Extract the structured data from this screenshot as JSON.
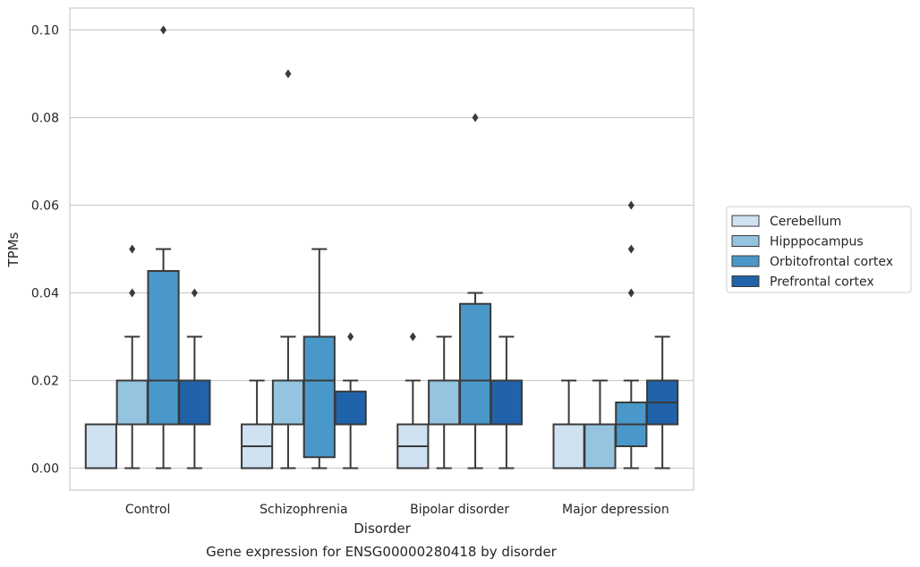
{
  "chart_data": {
    "type": "box",
    "title": "Gene expression for ENSG00000280418 by disorder",
    "xlabel": "Disorder",
    "ylabel": "TPMs",
    "ylim": [
      -0.005,
      0.105
    ],
    "y_ticks": [
      0.0,
      0.02,
      0.04,
      0.06,
      0.08,
      0.1
    ],
    "y_tick_labels": [
      "0.00",
      "0.02",
      "0.04",
      "0.06",
      "0.08",
      "0.10"
    ],
    "grid": "horizontal",
    "legend_position": "right",
    "categories": [
      "Control",
      "Schizophrenia",
      "Bipolar disorder",
      "Major depression"
    ],
    "series": [
      {
        "name": "Cerebellum",
        "color": "#d0e1f2",
        "boxes": [
          {
            "whislo": 0.0,
            "q1": 0.0,
            "med": 0.0,
            "q3": 0.01,
            "whishi": 0.01,
            "fliers": []
          },
          {
            "whislo": 0.0,
            "q1": 0.0,
            "med": 0.005,
            "q3": 0.01,
            "whishi": 0.02,
            "fliers": []
          },
          {
            "whislo": 0.0,
            "q1": 0.0,
            "med": 0.005,
            "q3": 0.01,
            "whishi": 0.02,
            "fliers": [
              0.03
            ]
          },
          {
            "whislo": 0.0,
            "q1": 0.0,
            "med": 0.0,
            "q3": 0.01,
            "whishi": 0.02,
            "fliers": []
          }
        ]
      },
      {
        "name": "Hipppocampus",
        "color": "#94c4df",
        "boxes": [
          {
            "whislo": 0.0,
            "q1": 0.01,
            "med": 0.01,
            "q3": 0.02,
            "whishi": 0.03,
            "fliers": [
              0.04,
              0.05
            ]
          },
          {
            "whislo": 0.0,
            "q1": 0.01,
            "med": 0.01,
            "q3": 0.02,
            "whishi": 0.03,
            "fliers": [
              0.09
            ]
          },
          {
            "whislo": 0.0,
            "q1": 0.01,
            "med": 0.01,
            "q3": 0.02,
            "whishi": 0.03,
            "fliers": []
          },
          {
            "whislo": 0.0,
            "q1": 0.0,
            "med": 0.0,
            "q3": 0.01,
            "whishi": 0.02,
            "fliers": []
          }
        ]
      },
      {
        "name": "Orbitofrontal cortex",
        "color": "#4a98c9",
        "boxes": [
          {
            "whislo": 0.0,
            "q1": 0.01,
            "med": 0.02,
            "q3": 0.045,
            "whishi": 0.05,
            "fliers": [
              0.1
            ]
          },
          {
            "whislo": 0.0,
            "q1": 0.0025,
            "med": 0.02,
            "q3": 0.03,
            "whishi": 0.05,
            "fliers": []
          },
          {
            "whislo": 0.0,
            "q1": 0.01,
            "med": 0.02,
            "q3": 0.0375,
            "whishi": 0.04,
            "fliers": [
              0.08
            ]
          },
          {
            "whislo": 0.0,
            "q1": 0.005,
            "med": 0.01,
            "q3": 0.015,
            "whishi": 0.02,
            "fliers": [
              0.04,
              0.05,
              0.06
            ]
          }
        ]
      },
      {
        "name": "Prefrontal cortex",
        "color": "#2163aa",
        "boxes": [
          {
            "whislo": 0.0,
            "q1": 0.01,
            "med": 0.02,
            "q3": 0.02,
            "whishi": 0.03,
            "fliers": [
              0.04
            ]
          },
          {
            "whislo": 0.0,
            "q1": 0.01,
            "med": 0.01,
            "q3": 0.0175,
            "whishi": 0.02,
            "fliers": [
              0.03
            ]
          },
          {
            "whislo": 0.0,
            "q1": 0.01,
            "med": 0.02,
            "q3": 0.02,
            "whishi": 0.03,
            "fliers": []
          },
          {
            "whislo": 0.0,
            "q1": 0.01,
            "med": 0.015,
            "q3": 0.02,
            "whishi": 0.03,
            "fliers": []
          }
        ]
      }
    ]
  }
}
